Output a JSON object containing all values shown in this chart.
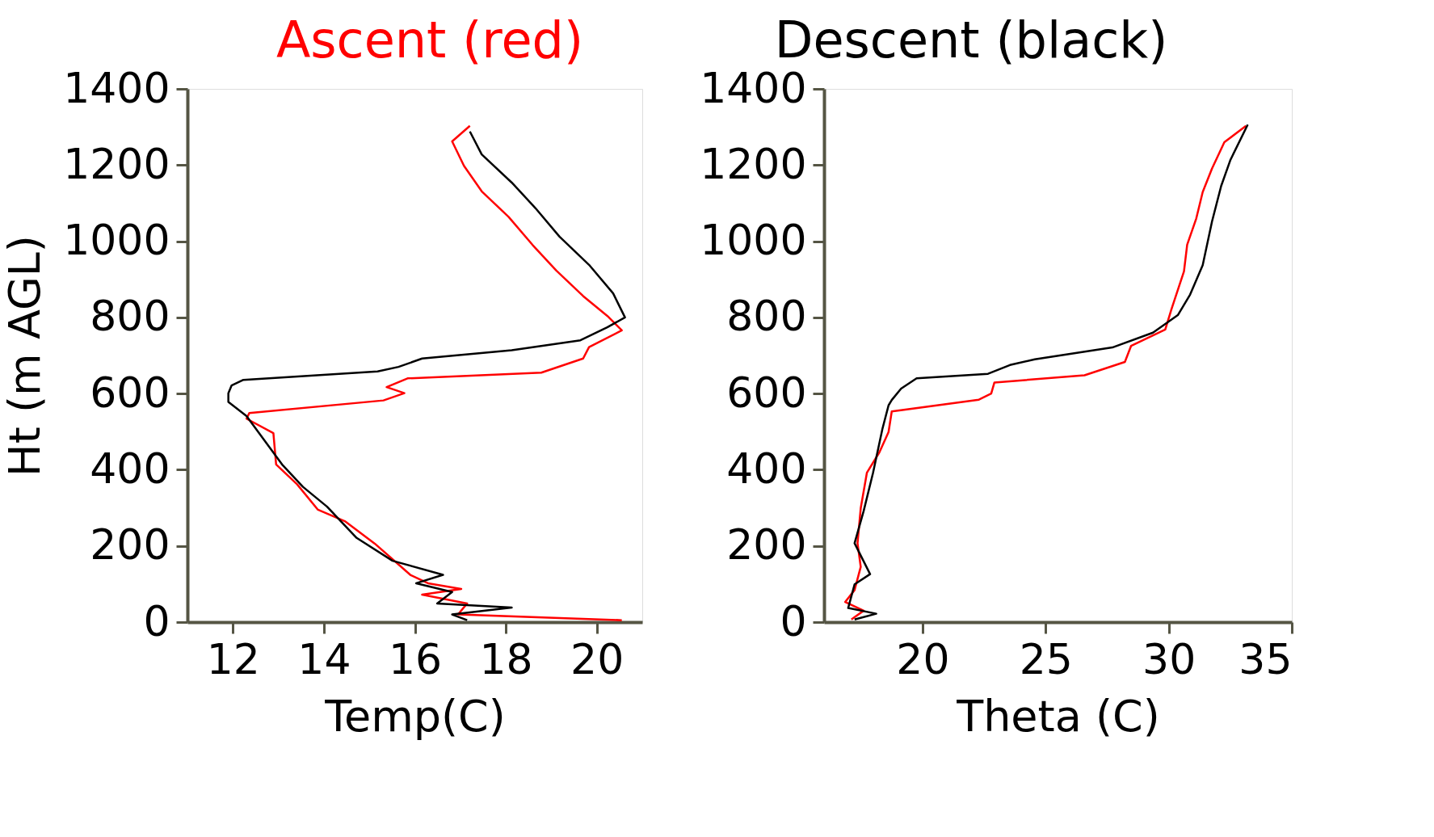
{
  "chart_data": [
    {
      "type": "line",
      "xlabel": "Temp(C)",
      "ylabel": "Ht (m AGL)",
      "xlim": [
        11,
        21
      ],
      "xticks": [
        12,
        14,
        16,
        18,
        20
      ],
      "ylim": [
        0,
        1400
      ],
      "yticks": [
        0,
        200,
        400,
        600,
        800,
        1000,
        1200,
        1400
      ],
      "grid": false,
      "series": [
        {
          "name": "Ascent (red)",
          "color": "#ff0000",
          "x": [
            20.55,
            16.95,
            17.15,
            16.16,
            17.02,
            16.29,
            15.9,
            15.12,
            14.46,
            13.87,
            13.41,
            12.95,
            12.89,
            12.3,
            12.36,
            15.31,
            15.77,
            15.38,
            15.84,
            18.78,
            19.7,
            19.83,
            20.55,
            20.23,
            19.7,
            19.11,
            18.59,
            18.06,
            17.47,
            17.08,
            16.82,
            17.21
          ],
          "values": [
            5,
            20,
            49,
            72,
            87,
            102,
            124,
            206,
            265,
            295,
            362,
            414,
            496,
            534,
            549,
            582,
            601,
            617,
            640,
            655,
            692,
            722,
            766,
            804,
            856,
            923,
            990,
            1064,
            1131,
            1198,
            1262,
            1303
          ]
        },
        {
          "name": "Descent (black)",
          "color": "#000000",
          "x": [
            17.15,
            16.82,
            18.13,
            16.49,
            16.82,
            16.03,
            16.62,
            15.51,
            14.72,
            14.07,
            13.54,
            13.08,
            12.62,
            12.3,
            11.9,
            11.9,
            11.97,
            12.23,
            15.18,
            15.64,
            16.16,
            18.13,
            19.64,
            20.23,
            20.62,
            20.36,
            19.83,
            19.18,
            18.65,
            18.13,
            17.47,
            17.21
          ],
          "values": [
            5,
            20,
            38,
            49,
            79,
            102,
            124,
            161,
            221,
            303,
            355,
            414,
            489,
            541,
            578,
            601,
            621,
            636,
            658,
            670,
            692,
            714,
            740,
            774,
            800,
            863,
            938,
            1012,
            1087,
            1154,
            1228,
            1288
          ]
        }
      ]
    },
    {
      "type": "line",
      "xlabel": "Theta (C)",
      "xlim": [
        16,
        35
      ],
      "xticks": [
        20,
        25,
        30,
        35
      ],
      "ylim": [
        0,
        1400
      ],
      "yticks": [
        0,
        200,
        400,
        600,
        800,
        1000,
        1200,
        1400
      ],
      "grid": false,
      "series": [
        {
          "color": "#ff0000",
          "x": [
            17.11,
            17.61,
            16.86,
            17.24,
            17.49,
            17.36,
            17.49,
            17.74,
            18.25,
            18.62,
            18.75,
            22.29,
            22.79,
            22.92,
            26.58,
            28.22,
            28.47,
            29.86,
            30.11,
            30.62,
            30.75,
            31.12,
            31.38,
            31.76,
            32.26,
            33.14
          ],
          "values": [
            7,
            30,
            53,
            84,
            145,
            207,
            299,
            392,
            446,
            499,
            553,
            584,
            600,
            629,
            648,
            683,
            725,
            768,
            821,
            921,
            991,
            1060,
            1129,
            1191,
            1260,
            1303
          ]
        },
        {
          "color": "#000000",
          "x": [
            17.24,
            18.12,
            16.98,
            17.24,
            17.87,
            17.24,
            17.61,
            17.99,
            18.37,
            18.62,
            18.75,
            19.13,
            19.76,
            22.66,
            23.55,
            24.56,
            27.71,
            29.36,
            30.37,
            30.87,
            31.38,
            31.76,
            32.13,
            32.51,
            33.21
          ],
          "values": [
            7,
            22,
            37,
            99,
            126,
            207,
            292,
            392,
            507,
            569,
            583,
            613,
            640,
            652,
            675,
            690,
            721,
            760,
            806,
            860,
            937,
            1052,
            1145,
            1214,
            1306
          ]
        }
      ]
    }
  ]
}
